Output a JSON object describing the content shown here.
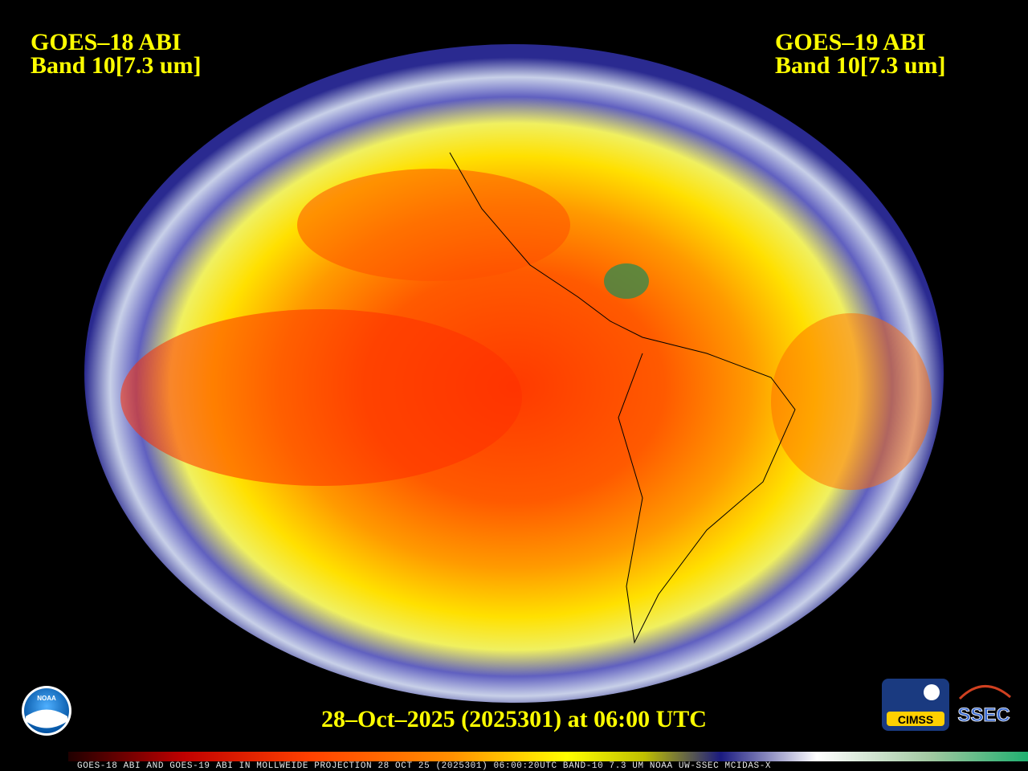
{
  "header": {
    "left": {
      "satellite": "GOES–18 ABI",
      "band": "Band 10[7.3 um]"
    },
    "right": {
      "satellite": "GOES–19 ABI",
      "band": "Band 10[7.3 um]"
    }
  },
  "timestamp": "28–Oct–2025 (2025301) at 06:00 UTC",
  "footer_strip": "GOES-18 ABI AND GOES-19 ABI IN MOLLWEIDE PROJECTION 28 OCT 25 (2025301) 06:00:20UTC BAND-10 7.3 UM NOAA UW-SSEC MCIDAS-X",
  "logos": {
    "noaa": "NOAA",
    "cimss": "CIMSS",
    "ssec": "SSEC"
  }
}
